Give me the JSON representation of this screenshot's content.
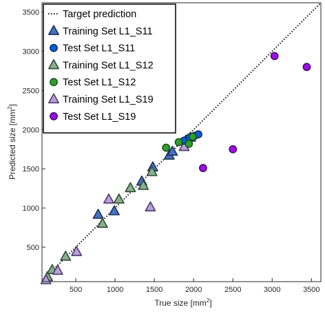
{
  "chart_data": {
    "type": "scatter",
    "title": "",
    "xlabel": "True size [mm",
    "xlabel_sup": "2",
    "xlabel_end": "]",
    "ylabel": "Predicted size [mm",
    "ylabel_sup": "2",
    "ylabel_end": "]",
    "xlim": [
      70,
      3620
    ],
    "ylim": [
      60,
      3620
    ],
    "xticks": [
      500,
      1000,
      1500,
      2000,
      2500,
      3000,
      3500
    ],
    "yticks": [
      500,
      1000,
      1500,
      2000,
      2500,
      3000,
      3500
    ],
    "grid": false,
    "legend_position": "top-left",
    "reference_line": {
      "name": "Target prediction",
      "style": "dotted",
      "color": "#222222",
      "from": [
        70,
        70
      ],
      "to": [
        3620,
        3620
      ]
    },
    "series": [
      {
        "name": "Training Set L1_S11",
        "marker": "triangle",
        "fill": "#4472c4",
        "edge": "#1f2f55",
        "points": [
          [
            785,
            915
          ],
          [
            990,
            960
          ],
          [
            1340,
            1340
          ],
          [
            1480,
            1520
          ],
          [
            1690,
            1670
          ],
          [
            1730,
            1720
          ],
          [
            1900,
            1860
          ],
          [
            1960,
            1900
          ]
        ]
      },
      {
        "name": "Test Set L1_S11",
        "marker": "circle",
        "fill": "#0a5bd6",
        "edge": "#0a2a66",
        "points": [
          [
            1880,
            1860
          ],
          [
            1950,
            1900
          ],
          [
            2010,
            1920
          ],
          [
            2060,
            1940
          ]
        ]
      },
      {
        "name": "Training Set L1_S12",
        "marker": "triangle",
        "fill": "#88b08e",
        "edge": "#2f4a33",
        "points": [
          [
            140,
            120
          ],
          [
            200,
            210
          ],
          [
            370,
            380
          ],
          [
            840,
            800
          ],
          [
            1050,
            1110
          ],
          [
            1195,
            1255
          ],
          [
            1360,
            1285
          ],
          [
            1470,
            1460
          ]
        ]
      },
      {
        "name": "Test Set L1_S12",
        "marker": "circle",
        "fill": "#2ca02c",
        "edge": "#154a15",
        "points": [
          [
            1650,
            1770
          ],
          [
            1810,
            1840
          ],
          [
            1940,
            1820
          ],
          [
            1990,
            1910
          ]
        ]
      },
      {
        "name": "Training Set L1_S19",
        "marker": "triangle",
        "fill": "#b9a0dc",
        "edge": "#4d3a6a",
        "points": [
          [
            120,
            80
          ],
          [
            270,
            200
          ],
          [
            510,
            440
          ],
          [
            920,
            1110
          ],
          [
            1450,
            1010
          ],
          [
            1880,
            1780
          ]
        ]
      },
      {
        "name": "Test Set L1_S19",
        "marker": "circle",
        "fill": "#9b10e8",
        "edge": "#3d0660",
        "points": [
          [
            2120,
            1510
          ],
          [
            2500,
            1750
          ],
          [
            3030,
            2940
          ],
          [
            3440,
            2800
          ]
        ]
      }
    ]
  }
}
